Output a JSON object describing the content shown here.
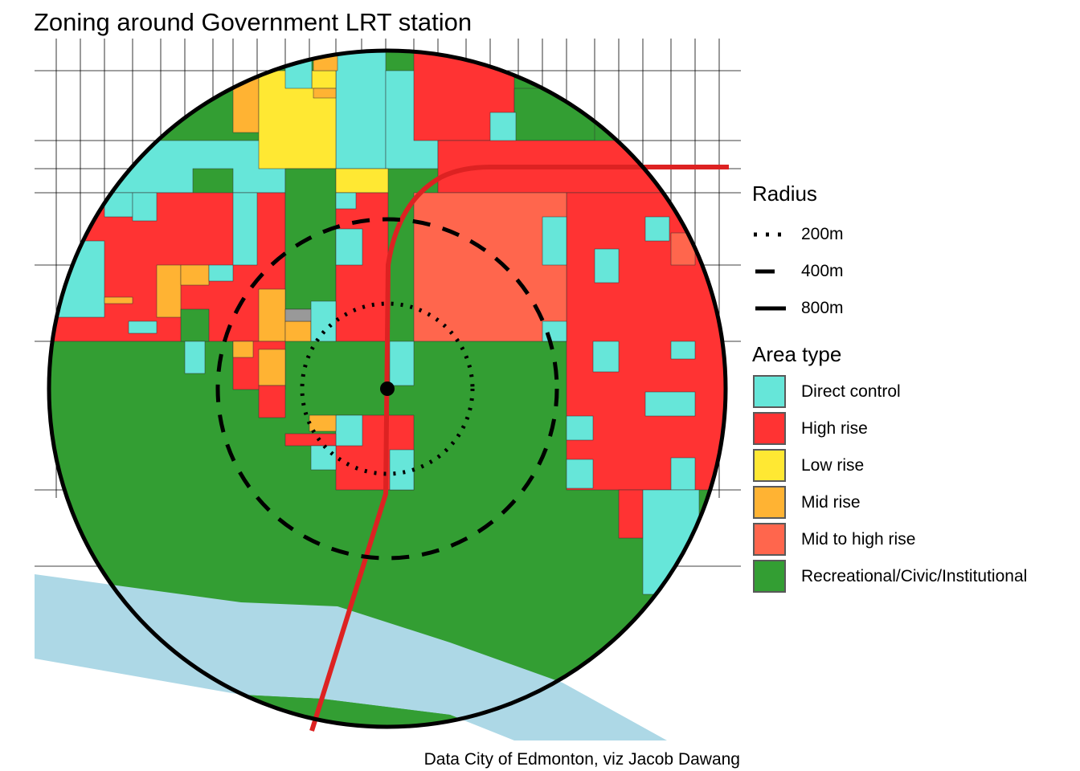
{
  "title": "Zoning around Government LRT station",
  "caption": "Data City of Edmonton, viz Jacob Dawang",
  "legend": {
    "radius_title": "Radius",
    "radius_items": [
      {
        "label": "200m",
        "style": "dotted"
      },
      {
        "label": "400m",
        "style": "dashed"
      },
      {
        "label": "800m",
        "style": "solid"
      }
    ],
    "area_title": "Area type",
    "area_items": [
      {
        "label": "Direct control",
        "color": "#66E6D9"
      },
      {
        "label": "High rise",
        "color": "#FF3333"
      },
      {
        "label": "Low rise",
        "color": "#FFE833"
      },
      {
        "label": "Mid rise",
        "color": "#FFB333"
      },
      {
        "label": "Mid to high rise",
        "color": "#FF664D"
      },
      {
        "label": "Recreational/Civic/Institutional",
        "color": "#339E33"
      }
    ]
  },
  "colors": {
    "river": "#ADD8E6",
    "lrt": "#DD2222",
    "other": "#999999",
    "station": "#000000"
  }
}
